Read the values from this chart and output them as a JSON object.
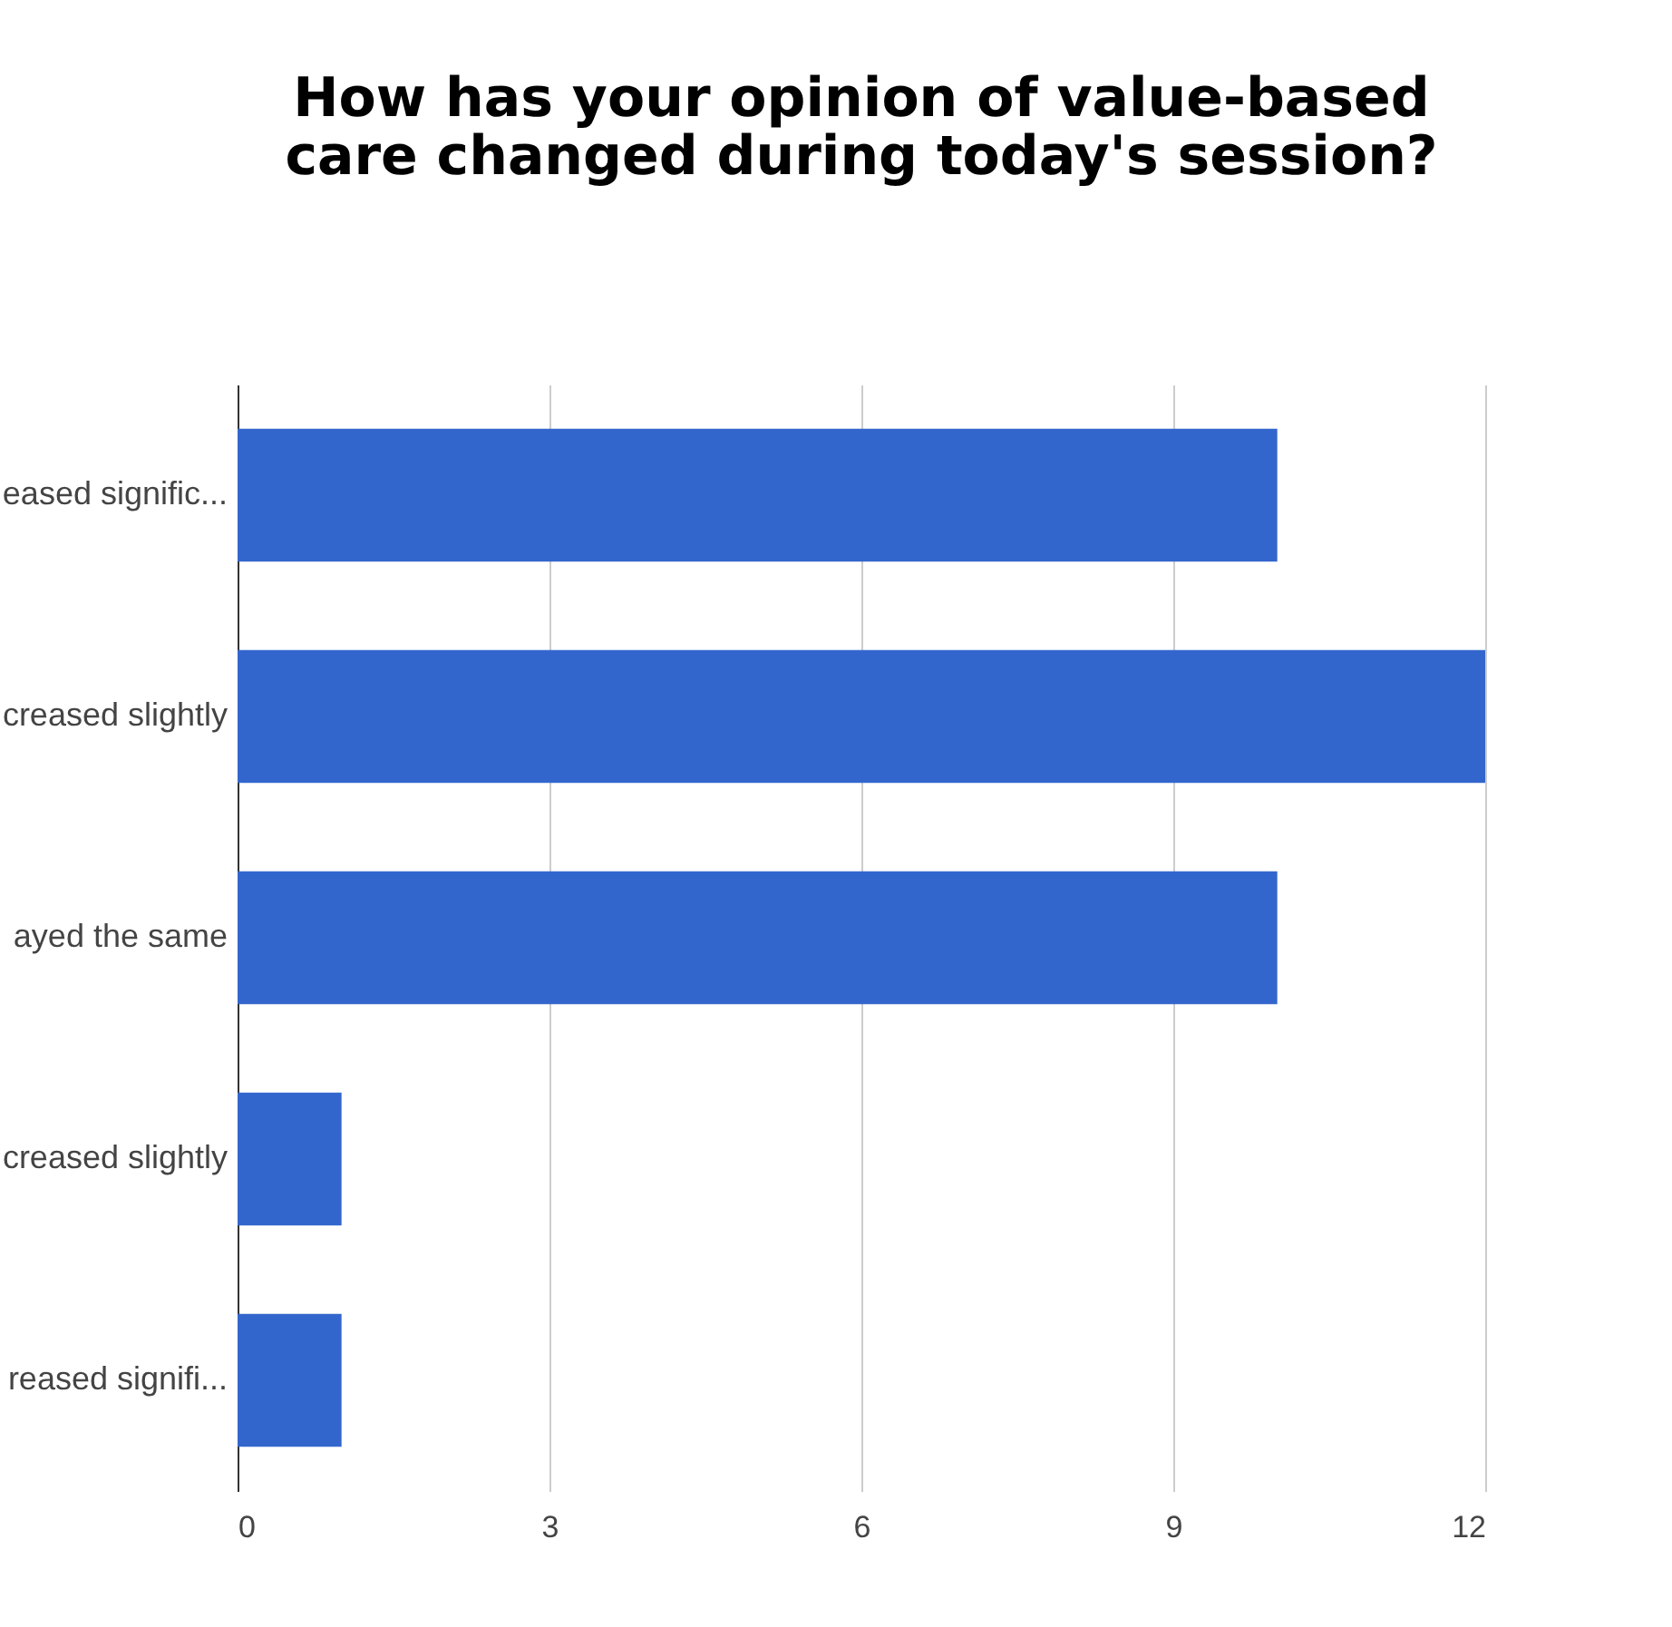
{
  "chart_data": {
    "type": "bar",
    "orientation": "horizontal",
    "title": "How has your opinion of value-based care changed during today's session?",
    "categories": [
      "eased signific...",
      "creased slightly",
      "ayed the same",
      "creased slightly",
      "reased signifi..."
    ],
    "values": [
      10,
      12,
      10,
      1,
      1
    ],
    "color": "#3366cc",
    "xlim": [
      0,
      12
    ],
    "xticks": [
      0,
      3,
      6,
      9,
      12
    ],
    "grid": "x"
  }
}
